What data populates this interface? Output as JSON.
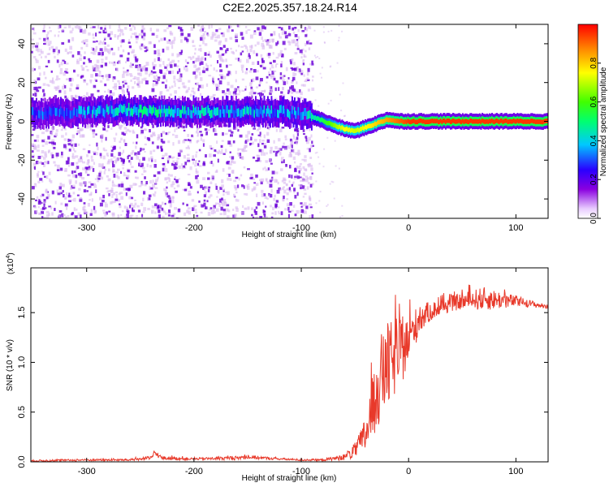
{
  "title": "C2E2.2025.357.18.24.R14",
  "chart_data": [
    {
      "type": "heatmap",
      "xlabel": "Height of straight line (km)",
      "ylabel": "Frequency (Hz)",
      "xlim": [
        -352,
        130
      ],
      "ylim": [
        -50,
        50
      ],
      "xticks": [
        -300,
        -200,
        -100,
        0,
        100
      ],
      "xtick_labels": [
        "-300",
        "-200",
        "-100",
        "0",
        "100"
      ],
      "yticks": [
        -40,
        -20,
        0,
        20,
        40
      ],
      "ytick_labels": [
        "-40",
        "-20",
        "0",
        "20",
        "40"
      ],
      "colorbar": {
        "label": "Normalized spectral amplitude",
        "range": [
          0.0,
          1.0
        ],
        "ticks": [
          0.0,
          0.2,
          0.4,
          0.6,
          0.8
        ],
        "tick_labels": [
          "0.0",
          "0.2",
          "0.4",
          "0.6",
          "0.8"
        ]
      },
      "noise_region_x": [
        -352,
        -90
      ],
      "ridge": {
        "x": [
          -352,
          -300,
          -260,
          -240,
          -200,
          -150,
          -120,
          -100,
          -88,
          -75,
          -60,
          -50,
          -40,
          -30,
          -20,
          -10,
          0,
          20,
          60,
          100,
          130
        ],
        "freq": [
          4,
          5,
          6,
          5,
          5,
          5,
          5,
          4,
          2,
          -1,
          -4,
          -5,
          -3,
          -1,
          1,
          0,
          0,
          0,
          0,
          0,
          0
        ],
        "amplitude": [
          0.3,
          0.35,
          0.45,
          0.45,
          0.4,
          0.4,
          0.35,
          0.35,
          0.45,
          0.6,
          0.75,
          0.7,
          0.75,
          0.8,
          0.85,
          0.9,
          0.95,
          0.95,
          0.95,
          0.95,
          0.95
        ]
      }
    },
    {
      "type": "line",
      "xlabel": "Height of straight line (km)",
      "ylabel": "SNR (10 * v/v)",
      "multiplier_label": "(x10",
      "multiplier_exp": "4",
      "multiplier_close": ")",
      "xlim": [
        -352,
        130
      ],
      "ylim": [
        0,
        1.95
      ],
      "xticks": [
        -300,
        -200,
        -100,
        0,
        100
      ],
      "xtick_labels": [
        "-300",
        "-200",
        "-100",
        "0",
        "100"
      ],
      "yticks": [
        0.0,
        0.5,
        1.0,
        1.5
      ],
      "ytick_labels": [
        "0.0",
        "0.5",
        "1.0",
        "1.5"
      ],
      "series": [
        {
          "name": "SNR",
          "color": "#e8392a",
          "x": [
            -352,
            -300,
            -260,
            -240,
            -236,
            -230,
            -200,
            -160,
            -150,
            -120,
            -100,
            -80,
            -60,
            -50,
            -45,
            -40,
            -35,
            -30,
            -25,
            -20,
            -15,
            -10,
            -5,
            0,
            5,
            10,
            20,
            30,
            40,
            50,
            60,
            70,
            80,
            90,
            100,
            110,
            120,
            130
          ],
          "y": [
            0.01,
            0.02,
            0.02,
            0.04,
            0.09,
            0.04,
            0.03,
            0.04,
            0.05,
            0.03,
            0.02,
            0.02,
            0.05,
            0.12,
            0.2,
            0.3,
            0.5,
            0.75,
            0.9,
            1.0,
            1.05,
            1.1,
            1.15,
            1.25,
            1.35,
            1.45,
            1.52,
            1.56,
            1.6,
            1.62,
            1.64,
            1.65,
            1.64,
            1.63,
            1.62,
            1.6,
            1.58,
            1.56
          ],
          "spread": [
            0.01,
            0.01,
            0.01,
            0.02,
            0.03,
            0.02,
            0.01,
            0.02,
            0.02,
            0.01,
            0.01,
            0.01,
            0.03,
            0.08,
            0.12,
            0.2,
            0.3,
            0.4,
            0.45,
            0.45,
            0.4,
            0.35,
            0.3,
            0.25,
            0.2,
            0.15,
            0.1,
            0.08,
            0.08,
            0.08,
            0.1,
            0.12,
            0.1,
            0.08,
            0.06,
            0.04,
            0.03,
            0.02
          ]
        }
      ]
    }
  ],
  "colors": {
    "axis": "#000000",
    "line": "#e8392a",
    "noise_dark": "#6a00d8",
    "noise_light": "#d8b8f0"
  }
}
